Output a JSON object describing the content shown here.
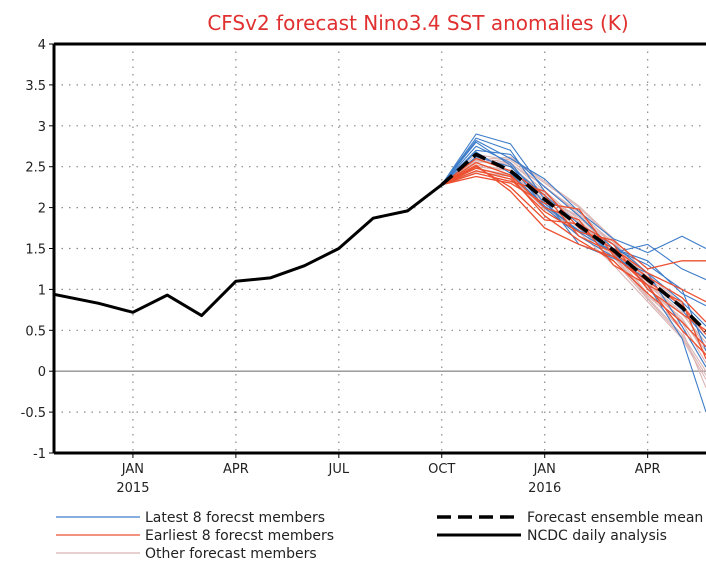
{
  "chart_data": {
    "type": "line",
    "title": "CFSv2 forecast Nino3.4 SST anomalies (K)",
    "xlabel": "",
    "ylabel": "",
    "x_axis": {
      "unit": "months since Nov 2014",
      "range": [
        -1.3,
        17.7
      ],
      "ticks": [
        {
          "x": 1,
          "label": "JAN",
          "sublabel": "2015"
        },
        {
          "x": 4,
          "label": "APR",
          "sublabel": ""
        },
        {
          "x": 7,
          "label": "JUL",
          "sublabel": ""
        },
        {
          "x": 10,
          "label": "OCT",
          "sublabel": ""
        },
        {
          "x": 13,
          "label": "JAN",
          "sublabel": "2016"
        },
        {
          "x": 16,
          "label": "APR",
          "sublabel": ""
        }
      ]
    },
    "ylim": [
      -1,
      4
    ],
    "y_ticks": [
      "-1",
      "-0.5",
      "0",
      "0.5",
      "1",
      "1.5",
      "2",
      "2.5",
      "3",
      "3.5",
      "4"
    ],
    "grid": true,
    "zero_line": true,
    "colors": {
      "title": "#e03030",
      "latest": "#3d7cc9",
      "earliest": "#ec5030",
      "other": "#dbb5b5",
      "ncdc": "#000000",
      "ensemble": "#000000",
      "grid": "#8a8a8a",
      "zero": "#909090"
    },
    "ncdc_daily_analysis": {
      "x": [
        -1.3,
        0,
        1,
        2,
        3,
        4,
        5,
        6,
        7,
        8,
        9,
        10
      ],
      "y": [
        0.94,
        0.83,
        0.72,
        0.93,
        0.68,
        1.1,
        1.14,
        1.29,
        1.5,
        1.87,
        1.96,
        2.28
      ]
    },
    "ensemble_mean": {
      "x": [
        10,
        11,
        12,
        13,
        14,
        15,
        16,
        17,
        17.7
      ],
      "y": [
        2.28,
        2.65,
        2.45,
        2.1,
        1.78,
        1.48,
        1.12,
        0.78,
        0.49
      ]
    },
    "forecast_members_x": [
      10,
      11,
      12,
      13,
      14,
      15,
      16,
      17,
      17.7
    ],
    "latest_members": [
      [
        2.28,
        2.9,
        2.78,
        2.2,
        1.75,
        1.45,
        1.05,
        0.4,
        -0.5
      ],
      [
        2.28,
        2.85,
        2.7,
        2.1,
        1.55,
        1.38,
        1.2,
        0.55,
        0.05
      ],
      [
        2.28,
        2.82,
        2.6,
        2.35,
        1.95,
        1.62,
        1.45,
        1.65,
        1.5
      ],
      [
        2.28,
        2.75,
        2.55,
        2.05,
        1.7,
        1.45,
        1.55,
        1.25,
        1.12
      ],
      [
        2.28,
        2.7,
        2.65,
        2.25,
        1.9,
        1.5,
        1.35,
        0.95,
        0.8
      ],
      [
        2.28,
        2.62,
        2.5,
        2.15,
        1.8,
        1.55,
        1.2,
        0.85,
        0.55
      ],
      [
        2.28,
        2.8,
        2.52,
        2.0,
        1.65,
        1.4,
        1.12,
        0.75,
        0.4
      ],
      [
        2.28,
        2.68,
        2.42,
        2.02,
        1.72,
        1.5,
        1.3,
        1.0,
        0.25
      ]
    ],
    "earliest_members": [
      [
        2.28,
        2.38,
        2.3,
        2.05,
        1.98,
        1.42,
        1.05,
        0.85,
        0.15
      ],
      [
        2.28,
        2.45,
        2.35,
        1.95,
        1.7,
        1.6,
        1.25,
        1.35,
        1.35
      ],
      [
        2.28,
        2.5,
        2.25,
        1.85,
        1.8,
        1.55,
        1.0,
        0.7,
        0.5
      ],
      [
        2.28,
        2.55,
        2.4,
        2.0,
        1.85,
        1.3,
        1.05,
        0.5,
        0.2
      ],
      [
        2.28,
        2.6,
        2.45,
        2.15,
        1.65,
        1.45,
        1.15,
        0.9,
        0.6
      ],
      [
        2.28,
        2.42,
        2.32,
        2.2,
        1.75,
        1.5,
        1.2,
        1.0,
        0.85
      ],
      [
        2.28,
        2.48,
        2.38,
        1.9,
        1.6,
        1.35,
        0.95,
        0.6,
        0.3
      ],
      [
        2.28,
        2.52,
        2.2,
        1.75,
        1.55,
        1.4,
        1.1,
        0.8,
        0.45
      ]
    ],
    "other_members": [
      [
        2.28,
        2.55,
        2.6,
        2.3,
        2.0,
        1.6,
        1.1,
        0.6,
        0.1
      ],
      [
        2.28,
        2.6,
        2.55,
        2.2,
        1.85,
        1.45,
        0.95,
        0.5,
        -0.2
      ],
      [
        2.28,
        2.5,
        2.45,
        2.05,
        1.75,
        1.4,
        0.9,
        0.45,
        0.0
      ],
      [
        2.28,
        2.65,
        2.58,
        2.25,
        1.95,
        1.55,
        1.05,
        0.7,
        0.35
      ],
      [
        2.28,
        2.45,
        2.35,
        2.0,
        1.7,
        1.3,
        0.85,
        0.4,
        -0.1
      ],
      [
        2.28,
        2.58,
        2.52,
        2.15,
        1.8,
        1.5,
        1.0,
        0.65,
        0.2
      ],
      [
        2.28,
        2.48,
        2.4,
        2.1,
        1.9,
        1.55,
        1.15,
        0.8,
        0.4
      ],
      [
        2.28,
        2.62,
        2.5,
        2.18,
        1.82,
        1.42,
        0.92,
        0.55,
        0.05
      ],
      [
        2.28,
        2.52,
        2.46,
        2.12,
        1.88,
        1.48,
        1.02,
        0.62,
        0.25
      ],
      [
        2.28,
        2.56,
        2.54,
        2.26,
        1.92,
        1.58,
        1.08,
        0.72,
        0.3
      ],
      [
        2.28,
        2.44,
        2.38,
        1.98,
        1.72,
        1.36,
        0.88,
        0.42,
        -0.05
      ],
      [
        2.28,
        2.58,
        2.62,
        2.32,
        2.02,
        1.62,
        1.18,
        0.82,
        0.45
      ]
    ],
    "legend": {
      "placement": "bottom",
      "items": [
        {
          "key": "latest",
          "label": "Latest 8 forecst members",
          "style": "thin"
        },
        {
          "key": "earliest",
          "label": "Earliest 8 forecst members",
          "style": "thin"
        },
        {
          "key": "other",
          "label": "Other forecast members",
          "style": "thin"
        },
        {
          "key": "ensemble",
          "label": "Forecast ensemble mean",
          "style": "dashed"
        },
        {
          "key": "ncdc",
          "label": "NCDC daily analysis",
          "style": "solid"
        }
      ]
    }
  }
}
